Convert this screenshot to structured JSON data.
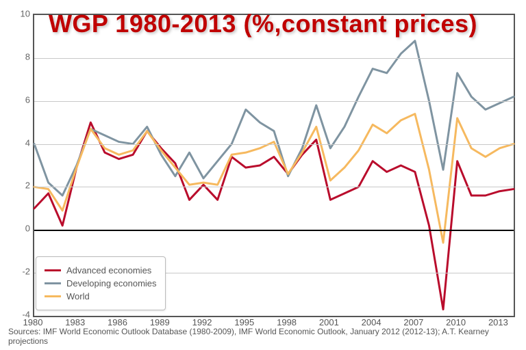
{
  "title": "WGP 1980-2013 (%,constant prices)",
  "title_color": "#c00000",
  "title_fontsize": 36,
  "sources": "Sources: IMF World Economic Outlook Database (1980-2009), IMF World Economic Outlook, January 2012 (2012-13); A.T. Kearney projections",
  "chart": {
    "type": "line",
    "background_color": "#ffffff",
    "border_color": "#555555",
    "grid_color": "#c8c8c8",
    "zero_line_color": "#000000",
    "xlim": [
      1980,
      2014
    ],
    "ylim": [
      -4,
      10
    ],
    "ytick_step": 2,
    "yticks": [
      -4,
      -2,
      0,
      2,
      4,
      6,
      8,
      10
    ],
    "xticks": [
      1980,
      1983,
      1986,
      1989,
      1992,
      1995,
      1998,
      2001,
      2004,
      2007,
      2010,
      2013
    ],
    "years": [
      1980,
      1981,
      1982,
      1983,
      1984,
      1985,
      1986,
      1987,
      1988,
      1989,
      1990,
      1991,
      1992,
      1993,
      1994,
      1995,
      1996,
      1997,
      1998,
      1999,
      2000,
      2001,
      2002,
      2003,
      2004,
      2005,
      2006,
      2007,
      2008,
      2009,
      2010,
      2011,
      2012,
      2013,
      2014
    ],
    "line_width": 3,
    "series": [
      {
        "key": "advanced",
        "label": "Advanced economies",
        "color": "#b90c2c",
        "values": [
          1.0,
          1.7,
          0.2,
          2.9,
          5.0,
          3.6,
          3.3,
          3.5,
          4.6,
          3.8,
          3.1,
          1.4,
          2.1,
          1.4,
          3.4,
          2.9,
          3.0,
          3.4,
          2.6,
          3.5,
          4.2,
          1.4,
          1.7,
          2.0,
          3.2,
          2.7,
          3.0,
          2.7,
          0.2,
          -3.7,
          3.2,
          1.6,
          1.6,
          1.8,
          1.9
        ]
      },
      {
        "key": "developing",
        "label": "Developing economies",
        "color": "#7f94a1",
        "values": [
          4.0,
          2.2,
          1.6,
          3.0,
          4.7,
          4.4,
          4.1,
          4.0,
          4.8,
          3.5,
          2.5,
          3.6,
          2.4,
          3.2,
          4.0,
          5.6,
          5.0,
          4.6,
          2.5,
          3.8,
          5.8,
          3.8,
          4.8,
          6.2,
          7.5,
          7.3,
          8.2,
          8.8,
          6.0,
          2.8,
          7.3,
          6.2,
          5.6,
          5.9,
          6.2
        ]
      },
      {
        "key": "world",
        "label": "World",
        "color": "#f6b95f",
        "values": [
          2.0,
          1.9,
          0.9,
          2.9,
          4.7,
          3.8,
          3.5,
          3.7,
          4.6,
          3.7,
          2.9,
          2.1,
          2.2,
          2.1,
          3.5,
          3.6,
          3.8,
          4.1,
          2.6,
          3.6,
          4.8,
          2.3,
          2.9,
          3.7,
          4.9,
          4.5,
          5.1,
          5.4,
          2.8,
          -0.6,
          5.2,
          3.8,
          3.4,
          3.8,
          4.0
        ]
      }
    ],
    "legend": {
      "position": "bottom-left",
      "background": "#ffffff",
      "border_color": "#bbbbbb"
    },
    "axis_label_color": "#666666",
    "axis_label_fontsize": 13
  }
}
